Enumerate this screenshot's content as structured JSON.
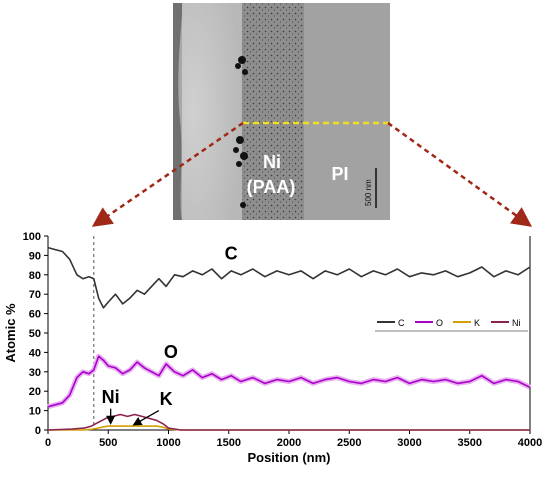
{
  "micrograph": {
    "label_ni": "Ni",
    "label_paa": "(PAA)",
    "label_pi": "PI",
    "scale_bar_text": "500 nm"
  },
  "chart_data": {
    "type": "line",
    "title": "",
    "xlabel": "Position (nm)",
    "ylabel": "Atomic %",
    "xlim": [
      0,
      4000
    ],
    "ylim": [
      0,
      100
    ],
    "xticks": [
      0,
      500,
      1000,
      1500,
      2000,
      2500,
      3000,
      3500,
      4000
    ],
    "yticks": [
      0,
      10,
      20,
      30,
      40,
      50,
      60,
      70,
      80,
      90,
      100
    ],
    "interface_marker_x": 380,
    "legend": {
      "placement": "right-middle",
      "entries": [
        "C",
        "O",
        "K",
        "Ni"
      ]
    },
    "annotations": [
      {
        "text": "C",
        "x": 1520,
        "y": 88
      },
      {
        "text": "O",
        "x": 1020,
        "y": 37
      },
      {
        "text": "Ni",
        "x": 520,
        "y": 14
      },
      {
        "text": "K",
        "x": 980,
        "y": 13
      }
    ],
    "series": [
      {
        "name": "C",
        "color": "#333333",
        "x": [
          0,
          60,
          120,
          180,
          240,
          290,
          340,
          380,
          420,
          460,
          500,
          560,
          620,
          680,
          740,
          800,
          860,
          920,
          980,
          1050,
          1120,
          1200,
          1280,
          1360,
          1440,
          1520,
          1600,
          1700,
          1800,
          1900,
          2000,
          2100,
          2200,
          2300,
          2400,
          2500,
          2600,
          2700,
          2800,
          2900,
          3000,
          3100,
          3200,
          3300,
          3400,
          3500,
          3600,
          3700,
          3800,
          3900,
          4000
        ],
        "y": [
          94,
          93,
          92,
          88,
          80,
          78,
          79,
          78,
          68,
          63,
          66,
          70,
          65,
          68,
          72,
          70,
          74,
          78,
          74,
          80,
          79,
          82,
          80,
          83,
          78,
          82,
          80,
          83,
          79,
          82,
          80,
          82,
          78,
          82,
          80,
          83,
          79,
          82,
          80,
          83,
          79,
          81,
          80,
          82,
          79,
          81,
          84,
          79,
          82,
          80,
          84
        ]
      },
      {
        "name": "O",
        "color": "#aa00cc",
        "x": [
          0,
          60,
          120,
          180,
          240,
          290,
          340,
          380,
          420,
          460,
          500,
          560,
          620,
          680,
          740,
          800,
          860,
          920,
          980,
          1050,
          1120,
          1200,
          1280,
          1360,
          1440,
          1520,
          1600,
          1700,
          1800,
          1900,
          2000,
          2100,
          2200,
          2300,
          2400,
          2500,
          2600,
          2700,
          2800,
          2900,
          3000,
          3100,
          3200,
          3300,
          3400,
          3500,
          3600,
          3700,
          3800,
          3900,
          4000
        ],
        "y": [
          12,
          13,
          14,
          18,
          27,
          30,
          29,
          31,
          38,
          36,
          33,
          32,
          29,
          31,
          35,
          32,
          30,
          28,
          34,
          30,
          28,
          31,
          27,
          29,
          26,
          28,
          25,
          27,
          24,
          26,
          25,
          27,
          24,
          26,
          27,
          25,
          24,
          26,
          25,
          27,
          24,
          26,
          25,
          26,
          24,
          25,
          28,
          24,
          26,
          25,
          22
        ]
      },
      {
        "name": "K",
        "color": "#d4a000",
        "x": [
          0,
          200,
          300,
          380,
          450,
          500,
          600,
          700,
          800,
          900,
          950,
          1000,
          1100,
          1500,
          2000,
          2500,
          3000,
          3500,
          4000
        ],
        "y": [
          0,
          0,
          0,
          0.5,
          1.5,
          2,
          2,
          2,
          2,
          2,
          1.5,
          0.5,
          0,
          0,
          0,
          0,
          0,
          0,
          0
        ]
      },
      {
        "name": "Ni",
        "color": "#8b2252",
        "x": [
          0,
          200,
          300,
          360,
          420,
          480,
          540,
          600,
          660,
          720,
          780,
          840,
          900,
          960,
          1000,
          1050,
          1100,
          1500,
          2000,
          2500,
          3000,
          3500,
          4000
        ],
        "y": [
          0,
          0.5,
          1,
          2,
          4,
          6,
          7,
          8,
          7,
          8,
          7,
          6,
          5,
          3,
          1,
          0.5,
          0,
          0,
          0,
          0,
          0,
          0,
          0
        ]
      }
    ]
  }
}
